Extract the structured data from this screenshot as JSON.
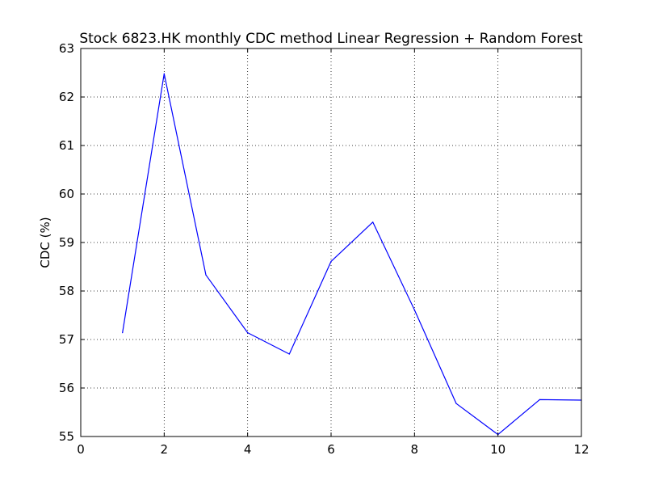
{
  "chart_data": {
    "type": "line",
    "title": "Stock 6823.HK monthly CDC method Linear Regression + Random Forest",
    "xlabel": "",
    "ylabel": "CDC (%)",
    "xlim": [
      0,
      12
    ],
    "ylim": [
      55,
      63
    ],
    "x_ticks": [
      "0",
      "2",
      "4",
      "6",
      "8",
      "10",
      "12"
    ],
    "y_ticks": [
      "55",
      "56",
      "57",
      "58",
      "59",
      "60",
      "61",
      "62",
      "63"
    ],
    "grid": true,
    "legend": "none",
    "series": [
      {
        "color": "#0000ff",
        "x": [
          1,
          2,
          3,
          4,
          5,
          6,
          7,
          8,
          9,
          10,
          11,
          12
        ],
        "y": [
          57.14,
          62.48,
          58.33,
          57.14,
          56.7,
          58.61,
          59.42,
          57.61,
          55.68,
          55.04,
          55.76,
          55.75
        ]
      }
    ]
  }
}
